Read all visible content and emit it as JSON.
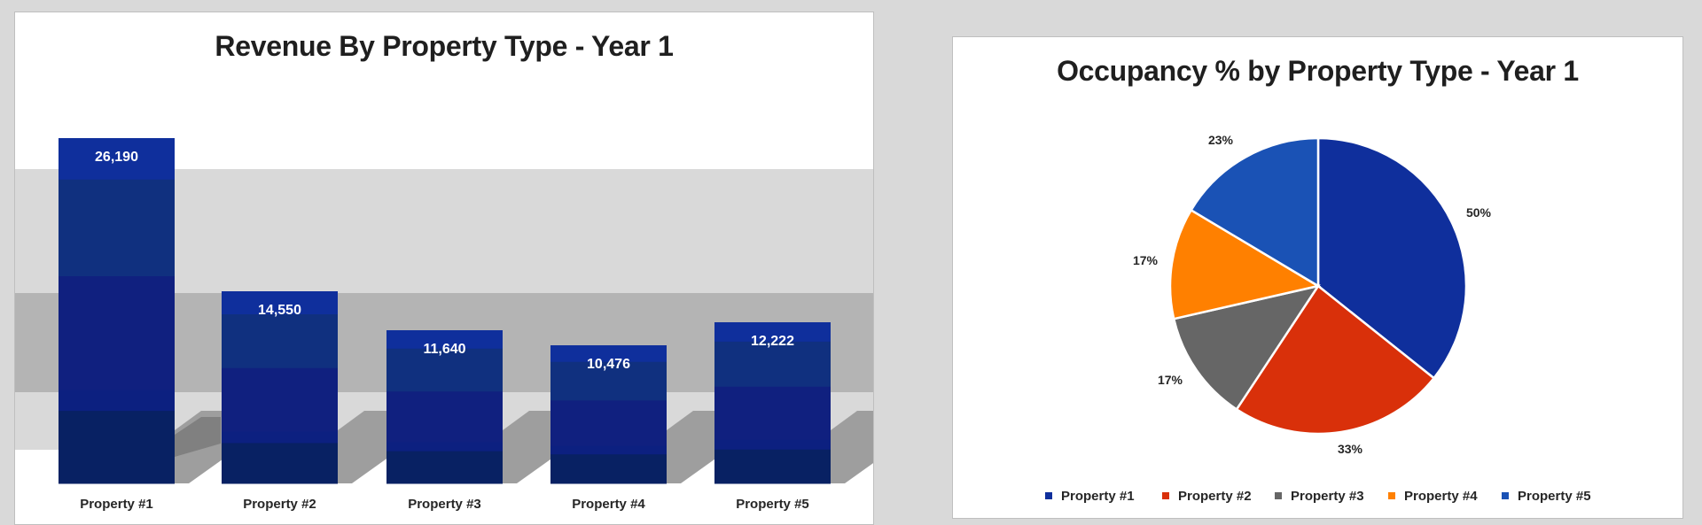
{
  "colors": {
    "page_background": "#d9d9d9",
    "bar_header": "#0f2f9c",
    "bar_mid": "#10307f",
    "bar_deep": "#10207f",
    "bar_thin": "#0c2080",
    "bar_dark": "#082163",
    "band_light": "#d9d9d9",
    "band_dark": "#b4b4b4",
    "pie": [
      "#0f2f9c",
      "#d9300a",
      "#666666",
      "#ff8000",
      "#1a52b5"
    ]
  },
  "left_chart": {
    "title": "Revenue By Property Type - Year 1"
  },
  "right_chart": {
    "title": "Occupancy % by Property Type - Year 1"
  },
  "chart_data": [
    {
      "type": "bar",
      "title": "Revenue By Property Type - Year 1",
      "categories": [
        "Property #1",
        "Property #2",
        "Property #3",
        "Property #4",
        "Property #5"
      ],
      "values": [
        26190,
        14550,
        11640,
        10476,
        12222
      ],
      "data_labels": [
        "26,190",
        "14,550",
        "11,640",
        "10,476",
        "12,222"
      ],
      "xlabel": "",
      "ylabel": "",
      "grid": false,
      "legend": "none"
    },
    {
      "type": "pie",
      "title": "Occupancy % by Property Type - Year 1",
      "categories": [
        "Property #1",
        "Property #2",
        "Property #3",
        "Property #4",
        "Property #5"
      ],
      "values": [
        50,
        33,
        17,
        17,
        23
      ],
      "data_labels": [
        "50%",
        "33%",
        "17%",
        "17%",
        "23%"
      ],
      "legend": "bottom"
    }
  ]
}
